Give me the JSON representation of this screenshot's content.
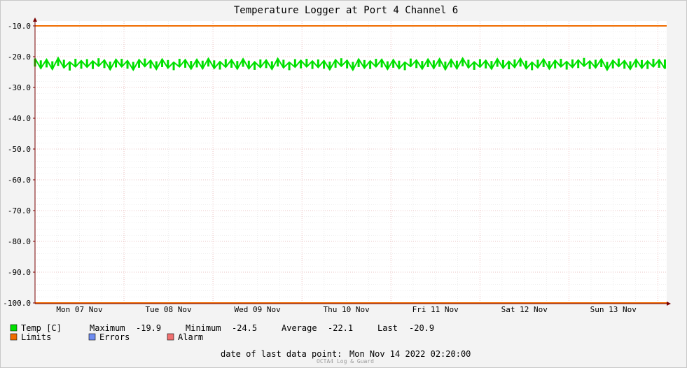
{
  "chart_data": {
    "type": "line",
    "title": "Temperature Logger at Port 4 Channel 6",
    "ylim": [
      -100.0,
      -10.0
    ],
    "y_ticks": [
      "-10.0",
      "-20.0",
      "-30.0",
      "-40.0",
      "-50.0",
      "-60.0",
      "-70.0",
      "-80.0",
      "-90.0",
      "-100.0"
    ],
    "x_ticks": [
      "Mon 07 Nov",
      "Tue 08 Nov",
      "Wed 09 Nov",
      "Thu 10 Nov",
      "Fri 11 Nov",
      "Sat 12 Nov",
      "Sun 13 Nov"
    ],
    "x_range_days": [
      0.0,
      7.1
    ],
    "grid": true,
    "series": [
      {
        "name": "Temp [C]",
        "color": "#00e000",
        "x_start_day": 0.0,
        "x_end_day": 7.08,
        "values_min": [
          -23.2,
          -23.8,
          -23.5,
          -24.1,
          -23.0,
          -23.6,
          -24.5,
          -23.3,
          -23.9,
          -23.4,
          -24.0,
          -23.1,
          -23.7,
          -24.2,
          -23.5,
          -23.3,
          -23.9,
          -24.3,
          -23.6,
          -23.2,
          -23.8,
          -24.1,
          -23.4,
          -23.7,
          -24.4,
          -23.3,
          -23.6,
          -24.0,
          -23.5,
          -23.9,
          -23.2,
          -23.8,
          -24.2,
          -23.4,
          -23.6,
          -24.0,
          -23.3,
          -23.9,
          -24.3,
          -23.5,
          -23.7,
          -24.1,
          -23.2,
          -23.6,
          -24.4,
          -23.4,
          -23.8,
          -23.3,
          -24.0,
          -23.5,
          -23.9,
          -24.2,
          -23.6,
          -23.1,
          -23.8,
          -24.3,
          -23.4,
          -23.7,
          -24.0,
          -23.3,
          -23.5,
          -24.1,
          -23.6,
          -23.9,
          -24.4,
          -23.2,
          -23.7,
          -24.0,
          -23.4,
          -23.8,
          -23.3,
          -24.2,
          -23.5,
          -23.9,
          -23.1,
          -23.6,
          -24.3,
          -23.4,
          -23.8,
          -24.0,
          -23.3,
          -23.7,
          -24.1,
          -23.5,
          -23.2,
          -23.9,
          -24.4,
          -23.6,
          -23.4,
          -24.0,
          -23.8,
          -23.3,
          -24.2,
          -23.5,
          -23.7,
          -23.1,
          -24.0,
          -23.6,
          -23.4,
          -24.3,
          -23.8,
          -23.2,
          -23.9,
          -24.1,
          -23.5,
          -23.7,
          -24.0,
          -23.3,
          -23.6,
          -23.9
        ],
        "values_max": [
          -20.6,
          -21.2,
          -20.9,
          -21.5,
          -20.4,
          -21.0,
          -21.7,
          -20.7,
          -21.3,
          -20.8,
          -21.4,
          -20.5,
          -21.1,
          -21.6,
          -20.9,
          -20.7,
          -21.3,
          -21.7,
          -21.0,
          -20.6,
          -21.2,
          -21.5,
          -20.8,
          -21.1,
          -21.8,
          -20.7,
          -21.0,
          -21.4,
          -20.9,
          -21.3,
          -20.6,
          -21.2,
          -21.6,
          -20.8,
          -21.0,
          -21.4,
          -20.7,
          -21.3,
          -21.7,
          -20.9,
          -21.1,
          -21.5,
          -20.6,
          -21.0,
          -21.8,
          -20.8,
          -21.2,
          -20.7,
          -21.4,
          -20.9,
          -21.3,
          -21.6,
          -21.0,
          -20.5,
          -21.2,
          -21.7,
          -20.8,
          -21.1,
          -21.4,
          -20.7,
          -20.9,
          -21.5,
          -21.0,
          -21.3,
          -21.8,
          -20.6,
          -21.1,
          -21.4,
          -20.8,
          -21.2,
          -20.7,
          -21.6,
          -20.9,
          -21.3,
          -20.5,
          -21.0,
          -21.7,
          -20.8,
          -21.2,
          -21.4,
          -20.7,
          -21.1,
          -21.5,
          -20.9,
          -20.6,
          -21.3,
          -21.8,
          -21.0,
          -20.8,
          -21.4,
          -21.2,
          -20.7,
          -21.6,
          -20.9,
          -21.1,
          -20.4,
          -21.4,
          -21.0,
          -20.8,
          -21.7,
          -21.2,
          -20.6,
          -21.3,
          -21.5,
          -20.9,
          -21.1,
          -21.4,
          -20.7,
          -21.0,
          -20.9
        ]
      },
      {
        "name": "Limits",
        "color": "#f06c00",
        "values": [
          -10.0,
          -100.0
        ]
      }
    ]
  },
  "legend": {
    "temp": {
      "label": "Temp [C]",
      "color": "#00e000"
    },
    "limits": {
      "label": "Limits",
      "color": "#f06c00"
    },
    "errors": {
      "label": "Errors",
      "color": "#6f8cf0"
    },
    "alarm": {
      "label": "Alarm",
      "color": "#f07070"
    },
    "stats": {
      "maximum_label": "Maximum",
      "maximum_value": "-19.9",
      "minimum_label": "Minimum",
      "minimum_value": "-24.5",
      "average_label": "Average",
      "average_value": "-22.1",
      "last_label": "Last",
      "last_value": "-20.9"
    }
  },
  "footer": {
    "last_point_label": "date of last data point:",
    "last_point_value": "Mon Nov 14 2022 02:20:00",
    "credit": "OCTA4 Log & Guard"
  }
}
